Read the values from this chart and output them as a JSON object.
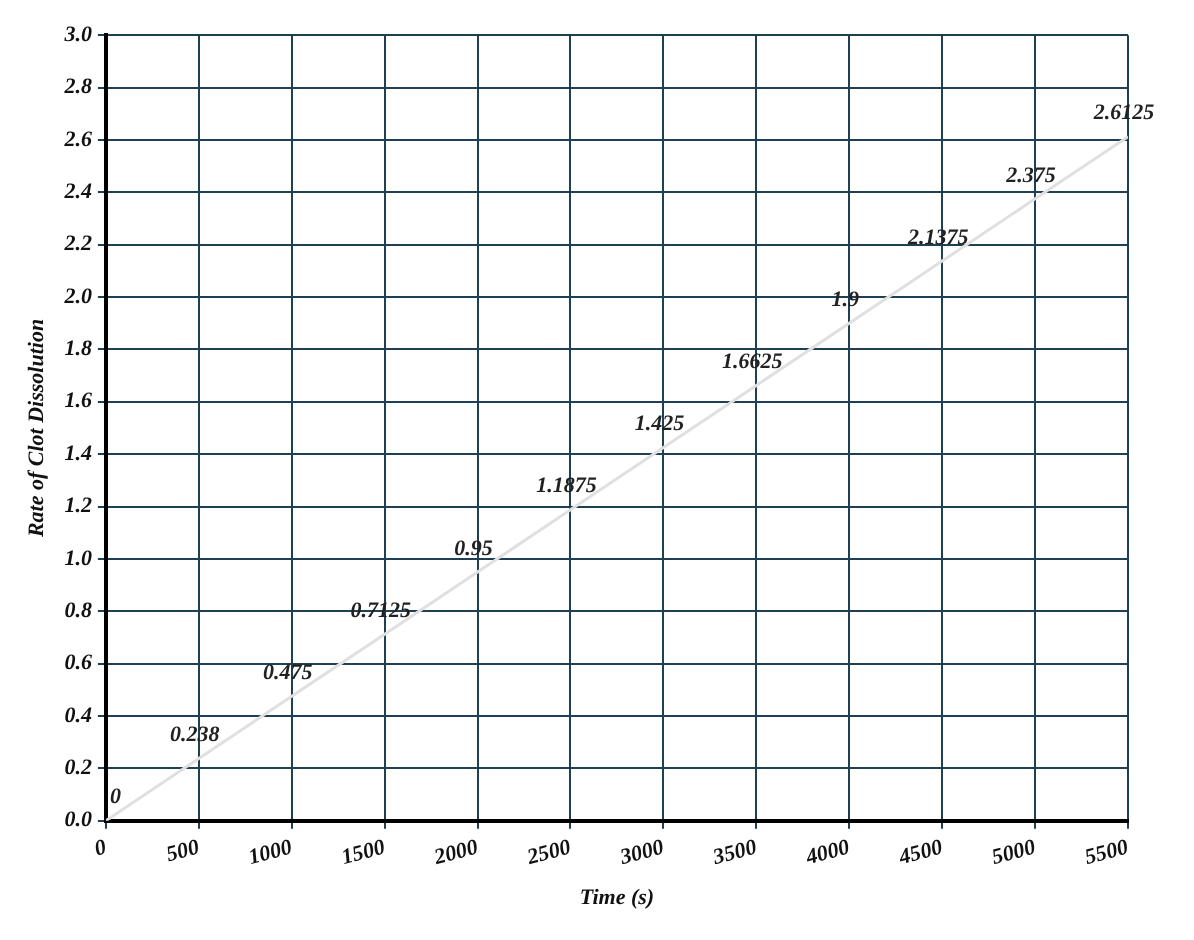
{
  "chart_data": {
    "type": "line",
    "xlabel": "Time (s)",
    "ylabel": "Rate of Clot Dissolution",
    "x": [
      0,
      500,
      1000,
      1500,
      2000,
      2500,
      3000,
      3500,
      4000,
      4500,
      5000,
      5500
    ],
    "series": [
      {
        "color": "#e0e0e0",
        "values": [
          0,
          0.238,
          0.475,
          0.7125,
          0.95,
          1.1875,
          1.425,
          1.6625,
          1.9,
          2.1375,
          2.375,
          2.6125
        ]
      }
    ],
    "xlim": [
      0,
      5500
    ],
    "xticks": [
      0,
      500,
      1000,
      1500,
      2000,
      2500,
      3000,
      3500,
      4000,
      4500,
      5000,
      5500
    ],
    "ylim": [
      0,
      3
    ],
    "yticks": [
      {
        "value": 0,
        "label": "0.0"
      },
      {
        "value": 0.2,
        "label": "0.2"
      },
      {
        "value": 0.4,
        "label": "0.4"
      },
      {
        "value": 0.6,
        "label": "0.6"
      },
      {
        "value": 0.8,
        "label": "0.8"
      },
      {
        "value": 1,
        "label": "1.0"
      },
      {
        "value": 1.2,
        "label": "1.2"
      },
      {
        "value": 1.4,
        "label": "1.4"
      },
      {
        "value": 1.6,
        "label": "1.6"
      },
      {
        "value": 1.8,
        "label": "1.8"
      },
      {
        "value": 2,
        "label": "2.0"
      },
      {
        "value": 2.2,
        "label": "2.2"
      },
      {
        "value": 2.4,
        "label": "2.4"
      },
      {
        "value": 2.6,
        "label": "2.6"
      },
      {
        "value": 2.8,
        "label": "2.8"
      },
      {
        "value": 3,
        "label": "3.0"
      }
    ],
    "grid": true,
    "legend": false,
    "marker": "none",
    "line_style": "solid",
    "data_labels": true
  }
}
